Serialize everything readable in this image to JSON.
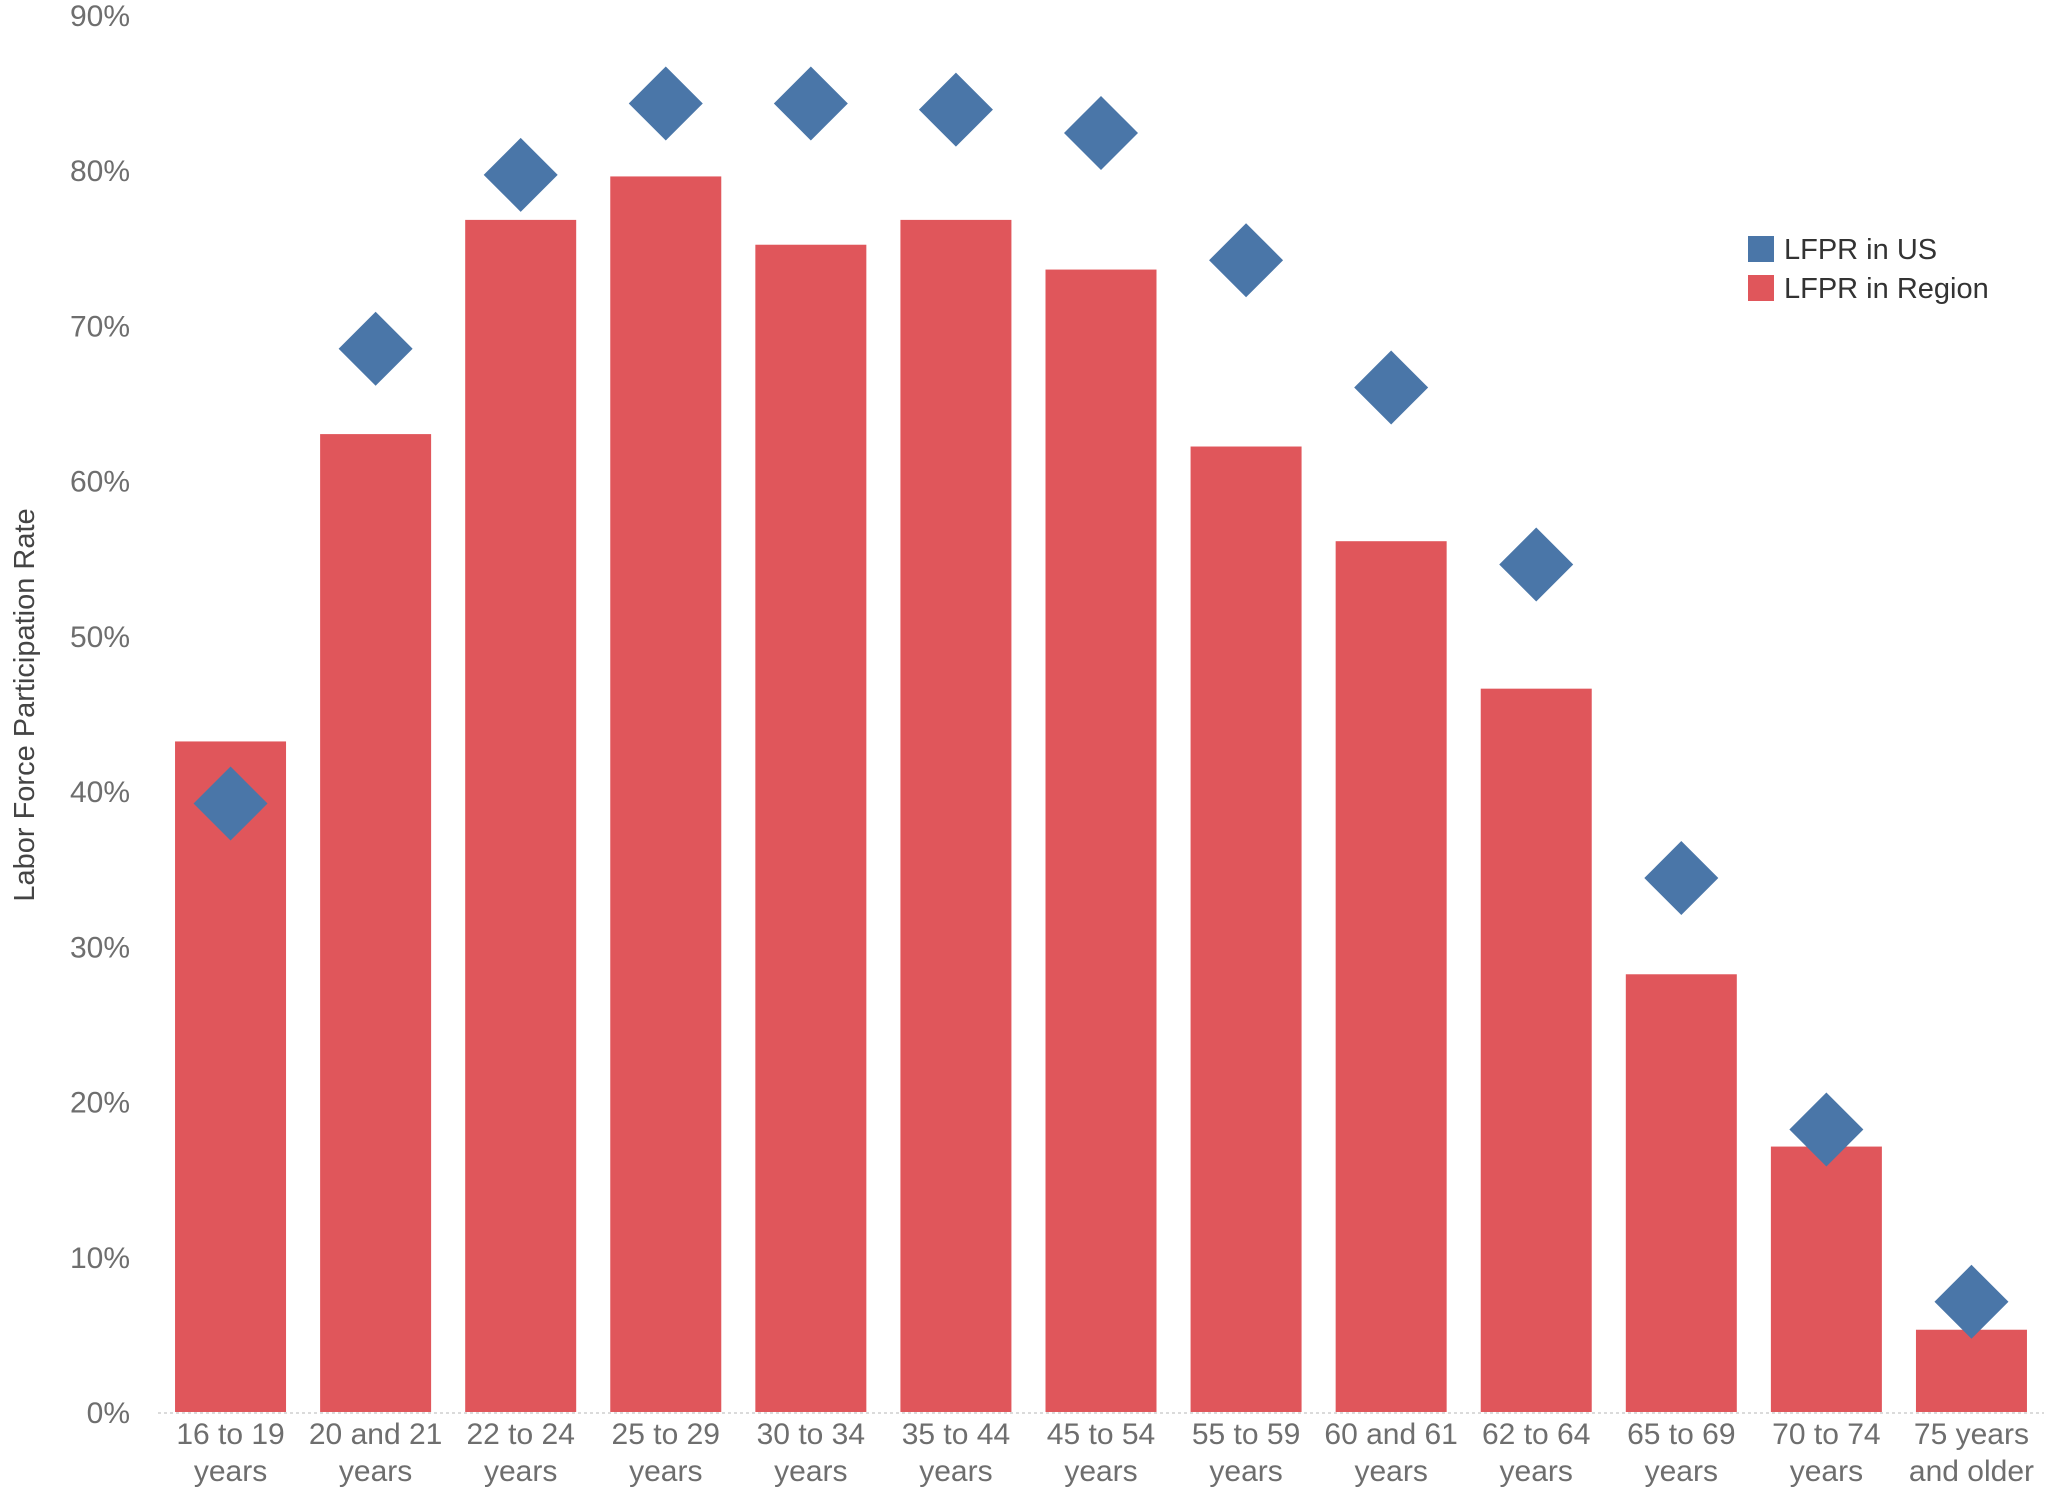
{
  "chart_data": {
    "type": "bar",
    "ylabel": "Labor Force Participation Rate",
    "ylim": [
      0,
      90
    ],
    "y_ticks": [
      0,
      10,
      20,
      30,
      40,
      50,
      60,
      70,
      80,
      90
    ],
    "y_tick_labels": [
      "0%",
      "10%",
      "20%",
      "30%",
      "40%",
      "50%",
      "60%",
      "70%",
      "80%",
      "90%"
    ],
    "categories": [
      [
        "16 to 19",
        "years"
      ],
      [
        "20 and 21",
        "years"
      ],
      [
        "22 to 24",
        "years"
      ],
      [
        "25 to 29",
        "years"
      ],
      [
        "30 to 34",
        "years"
      ],
      [
        "35 to 44",
        "years"
      ],
      [
        "45 to 54",
        "years"
      ],
      [
        "55 to 59",
        "years"
      ],
      [
        "60 and 61",
        "years"
      ],
      [
        "62 to 64",
        "years"
      ],
      [
        "65 to 69",
        "years"
      ],
      [
        "70 to 74",
        "years"
      ],
      [
        "75 years",
        "and older"
      ]
    ],
    "series": [
      {
        "name": "LFPR in Region",
        "type": "bar",
        "color": "#e0565b",
        "values": [
          43.2,
          63.0,
          76.8,
          79.6,
          75.2,
          76.8,
          73.6,
          62.2,
          56.1,
          46.6,
          28.2,
          17.1,
          5.3
        ]
      },
      {
        "name": "LFPR in US",
        "type": "diamond",
        "color": "#4a76a8",
        "values": [
          39.2,
          68.5,
          79.7,
          84.3,
          84.3,
          83.9,
          82.4,
          74.2,
          66.0,
          54.6,
          34.4,
          18.2,
          7.1
        ]
      }
    ],
    "legend": {
      "position": "top-right",
      "items": [
        {
          "label": "LFPR in US",
          "color": "#4a76a8"
        },
        {
          "label": "LFPR in Region",
          "color": "#e0565b"
        }
      ]
    },
    "grid": false
  }
}
